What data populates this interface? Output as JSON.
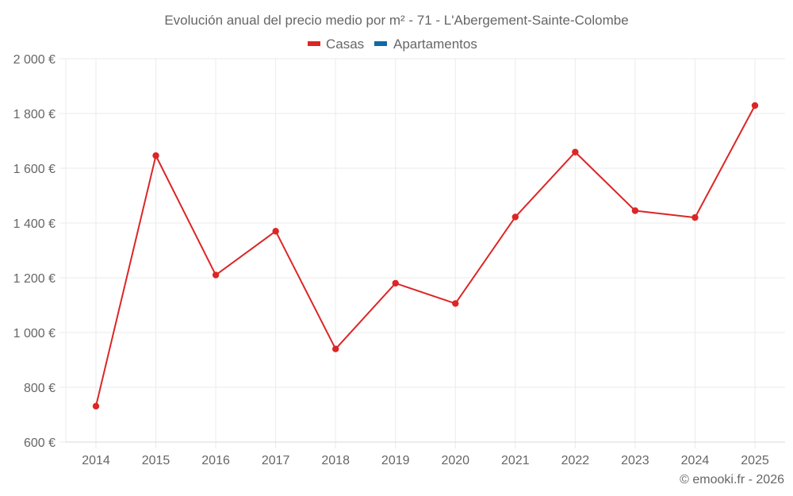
{
  "chart_data": {
    "type": "line",
    "title": "Evolución anual del precio medio por m² - 71 - L'Abergement-Sainte-Colombe",
    "xlabel": "",
    "ylabel": "",
    "categories": [
      "2014",
      "2015",
      "2016",
      "2017",
      "2018",
      "2019",
      "2020",
      "2021",
      "2022",
      "2023",
      "2024",
      "2025"
    ],
    "series": [
      {
        "name": "Casas",
        "color": "#dc2626",
        "values": [
          731,
          1646,
          1210,
          1370,
          940,
          1180,
          1106,
          1422,
          1659,
          1445,
          1420,
          1829
        ]
      },
      {
        "name": "Apartamentos",
        "color": "#0f6aa8",
        "values": []
      }
    ],
    "ylim": [
      600,
      2000
    ],
    "yticks": [
      600,
      800,
      1000,
      1200,
      1400,
      1600,
      1800,
      2000
    ],
    "ytick_labels": [
      "600 €",
      "800 €",
      "1 000 €",
      "1 200 €",
      "1 400 €",
      "1 600 €",
      "1 800 €",
      "2 000 €"
    ],
    "grid": true,
    "legend_position": "top"
  },
  "legend": {
    "items": [
      {
        "label": "Casas",
        "color": "#dc2626"
      },
      {
        "label": "Apartamentos",
        "color": "#0f6aa8"
      }
    ]
  },
  "footer": {
    "credit": "© emooki.fr - 2026"
  }
}
